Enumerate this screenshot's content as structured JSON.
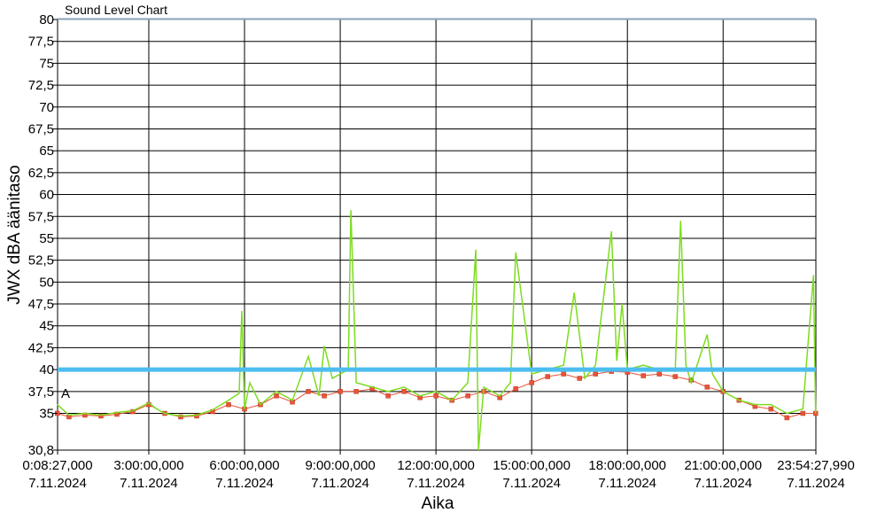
{
  "chart_data": {
    "type": "line",
    "title": "Sound Level Chart",
    "xlabel": "Aika",
    "ylabel": "JWX dBA äänitaso",
    "ylim": [
      30.8,
      80
    ],
    "xlim": [
      "2024-11-07T00:08:27",
      "2024-11-07T23:54:27.990"
    ],
    "grid": true,
    "y_ticks": [
      "30,8",
      "35",
      "37,5",
      "40",
      "42,5",
      "45",
      "47,5",
      "50",
      "52,5",
      "55",
      "57,5",
      "60",
      "62,5",
      "65",
      "67,5",
      "70",
      "72,5",
      "75",
      "77,5",
      "80"
    ],
    "y_tick_values": [
      30.8,
      35,
      37.5,
      40,
      42.5,
      45,
      47.5,
      50,
      52.5,
      55,
      57.5,
      60,
      62.5,
      65,
      67.5,
      70,
      72.5,
      75,
      77.5,
      80
    ],
    "x_ticks": [
      {
        "time": "2024-11-07T00:08:27",
        "label": "0:08:27,000",
        "date": "7.11.2024"
      },
      {
        "time": "2024-11-07T03:00:00",
        "label": "3:00:00,000",
        "date": "7.11.2024"
      },
      {
        "time": "2024-11-07T06:00:00",
        "label": "6:00:00,000",
        "date": "7.11.2024"
      },
      {
        "time": "2024-11-07T09:00:00",
        "label": "9:00:00,000",
        "date": "7.11.2024"
      },
      {
        "time": "2024-11-07T12:00:00",
        "label": "12:00:00,000",
        "date": "7.11.2024"
      },
      {
        "time": "2024-11-07T15:00:00",
        "label": "15:00:00,000",
        "date": "7.11.2024"
      },
      {
        "time": "2024-11-07T18:00:00",
        "label": "18:00:00,000",
        "date": "7.11.2024"
      },
      {
        "time": "2024-11-07T21:00:00",
        "label": "21:00:00,000",
        "date": "7.11.2024"
      },
      {
        "time": "2024-11-07T23:54:27.990",
        "label": "23:54:27,990",
        "date": "7.11.2024"
      }
    ],
    "threshold": {
      "value": 40,
      "color": "#4dbdf0"
    },
    "annotation": "A",
    "series": [
      {
        "color": "#7ddc1f",
        "x": [
          "00:08",
          "00:30",
          "01:00",
          "01:30",
          "02:00",
          "02:30",
          "03:00",
          "03:15",
          "03:30",
          "04:00",
          "04:30",
          "05:00",
          "05:30",
          "05:50",
          "05:55",
          "06:00",
          "06:10",
          "06:30",
          "07:00",
          "07:30",
          "08:00",
          "08:20",
          "08:30",
          "08:45",
          "09:00",
          "09:15",
          "09:20",
          "09:30",
          "10:00",
          "10:30",
          "11:00",
          "11:30",
          "12:00",
          "12:30",
          "13:00",
          "13:15",
          "13:20",
          "13:30",
          "14:00",
          "14:20",
          "14:30",
          "15:00",
          "15:30",
          "16:00",
          "16:20",
          "16:40",
          "17:00",
          "17:30",
          "17:40",
          "17:50",
          "18:00",
          "18:30",
          "19:00",
          "19:30",
          "19:40",
          "19:50",
          "20:00",
          "20:30",
          "20:40",
          "21:00",
          "21:30",
          "22:00",
          "22:30",
          "23:00",
          "23:30",
          "23:50",
          "23:54"
        ],
        "y": [
          36.0,
          34.8,
          35.0,
          34.8,
          35.1,
          35.3,
          36.2,
          35.5,
          35.0,
          34.7,
          34.8,
          35.4,
          36.5,
          37.3,
          46.7,
          35.5,
          38.5,
          36.0,
          37.5,
          36.5,
          41.5,
          37.0,
          42.7,
          39.0,
          39.5,
          40.0,
          58.2,
          38.5,
          38.0,
          37.5,
          38.0,
          37.0,
          37.5,
          36.5,
          38.5,
          53.7,
          30.8,
          38.0,
          37.0,
          38.5,
          53.4,
          39.5,
          40.0,
          40.5,
          48.8,
          39.0,
          40.5,
          55.8,
          41.0,
          47.5,
          40.0,
          40.5,
          40.0,
          39.8,
          57.0,
          40.5,
          38.5,
          44.0,
          39.5,
          37.5,
          36.5,
          36.0,
          36.0,
          35.0,
          35.5,
          50.8,
          35.0
        ]
      },
      {
        "color": "#e8533a",
        "x": [
          "00:08",
          "00:30",
          "01:00",
          "01:30",
          "02:00",
          "02:30",
          "03:00",
          "03:30",
          "04:00",
          "04:30",
          "05:00",
          "05:30",
          "06:00",
          "06:30",
          "07:00",
          "07:30",
          "08:00",
          "08:30",
          "09:00",
          "09:30",
          "10:00",
          "10:30",
          "11:00",
          "11:30",
          "12:00",
          "12:30",
          "13:00",
          "13:30",
          "14:00",
          "14:30",
          "15:00",
          "15:30",
          "16:00",
          "16:30",
          "17:00",
          "17:30",
          "18:00",
          "18:30",
          "19:00",
          "19:30",
          "20:00",
          "20:30",
          "21:00",
          "21:30",
          "22:00",
          "22:30",
          "23:00",
          "23:30",
          "23:54"
        ],
        "y": [
          35.0,
          34.6,
          34.8,
          34.7,
          34.9,
          35.2,
          36.0,
          35.0,
          34.6,
          34.7,
          35.2,
          36.0,
          35.5,
          36.0,
          37.0,
          36.3,
          37.5,
          37.0,
          37.5,
          37.5,
          37.8,
          37.0,
          37.5,
          36.8,
          37.0,
          36.5,
          37.0,
          37.5,
          36.8,
          37.8,
          38.5,
          39.2,
          39.5,
          39.0,
          39.5,
          39.8,
          39.7,
          39.3,
          39.5,
          39.2,
          38.8,
          38.0,
          37.5,
          36.5,
          35.8,
          35.5,
          34.5,
          35.0,
          35.0
        ]
      }
    ]
  }
}
